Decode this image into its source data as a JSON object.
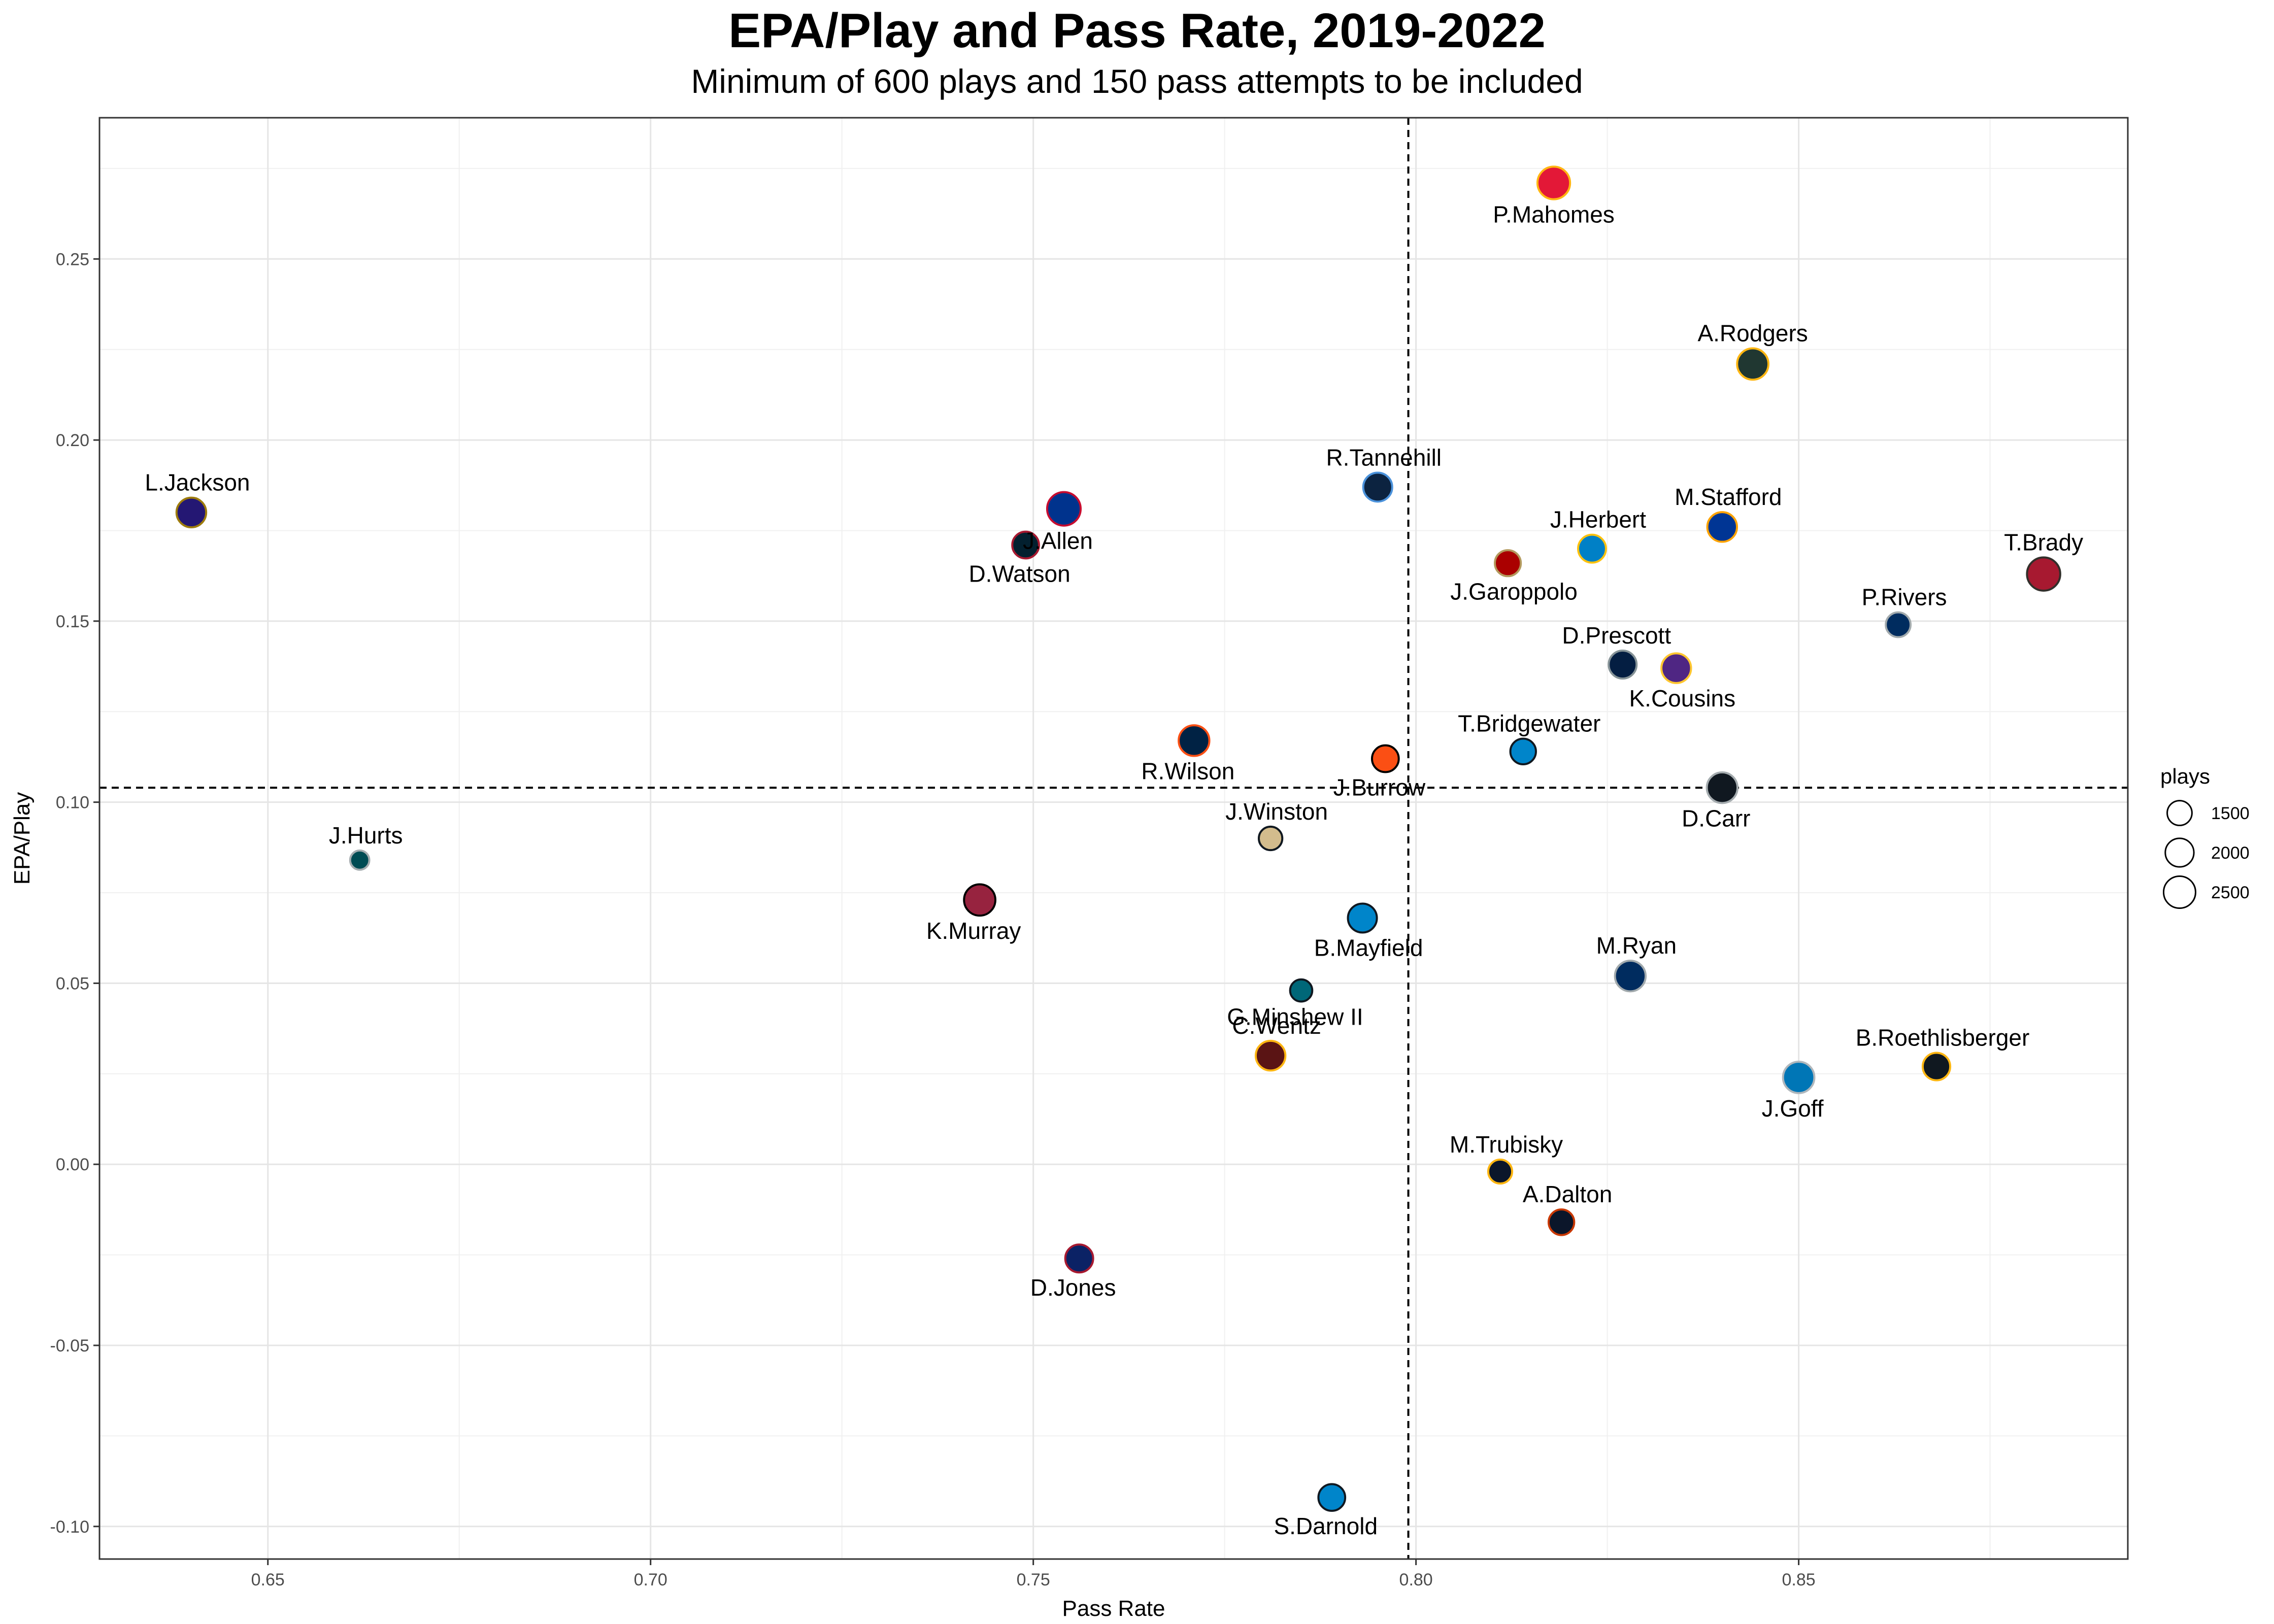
{
  "chart_data": {
    "type": "scatter",
    "title": "EPA/Play and Pass Rate, 2019-2022",
    "subtitle": "Minimum of 600 plays and 150 pass attempts to be included",
    "xlabel": "Pass Rate",
    "ylabel": "EPA/Play",
    "xlim": [
      0.628,
      0.893
    ],
    "ylim": [
      -0.109,
      0.289
    ],
    "x_ticks": [
      "0.65",
      "0.70",
      "0.75",
      "0.80",
      "0.85"
    ],
    "y_ticks": [
      "-0.10",
      "-0.05",
      "0.00",
      "0.05",
      "0.10",
      "0.15",
      "0.20",
      "0.25"
    ],
    "grid": true,
    "reference_lines": {
      "x": 0.799,
      "y": 0.104
    },
    "legend": {
      "title": "plays",
      "entries": [
        "1500",
        "2000",
        "2500"
      ],
      "position": "right"
    },
    "points": [
      {
        "label": "P.Mahomes",
        "x": 0.818,
        "y": 0.271,
        "plays": 2600,
        "fill": "#e31837",
        "stroke": "#ffb612"
      },
      {
        "label": "A.Rodgers",
        "x": 0.844,
        "y": 0.221,
        "plays": 2400,
        "fill": "#203731",
        "stroke": "#ffb612"
      },
      {
        "label": "L.Jackson",
        "x": 0.64,
        "y": 0.18,
        "plays": 2150,
        "fill": "#241773",
        "stroke": "#9e7c0c"
      },
      {
        "label": "J.Allen",
        "x": 0.754,
        "y": 0.181,
        "plays": 2750,
        "fill": "#00338d",
        "stroke": "#c60c30"
      },
      {
        "label": "D.Watson",
        "x": 0.749,
        "y": 0.171,
        "plays": 1750,
        "fill": "#03202f",
        "stroke": "#a71930"
      },
      {
        "label": "R.Tannehill",
        "x": 0.795,
        "y": 0.187,
        "plays": 2050,
        "fill": "#0c2340",
        "stroke": "#4b92db"
      },
      {
        "label": "J.Garoppolo",
        "x": 0.812,
        "y": 0.166,
        "plays": 1650,
        "fill": "#aa0000",
        "stroke": "#b3995d"
      },
      {
        "label": "J.Herbert",
        "x": 0.823,
        "y": 0.17,
        "plays": 1900,
        "fill": "#0080c6",
        "stroke": "#ffc20e"
      },
      {
        "label": "M.Stafford",
        "x": 0.84,
        "y": 0.176,
        "plays": 2150,
        "fill": "#003594",
        "stroke": "#ffa300"
      },
      {
        "label": "T.Brady",
        "x": 0.882,
        "y": 0.163,
        "plays": 2700,
        "fill": "#a71930",
        "stroke": "#322f2b"
      },
      {
        "label": "P.Rivers",
        "x": 0.863,
        "y": 0.149,
        "plays": 1500,
        "fill": "#002c5f",
        "stroke": "#a2aaad"
      },
      {
        "label": "D.Prescott",
        "x": 0.827,
        "y": 0.138,
        "plays": 1900,
        "fill": "#041e42",
        "stroke": "#869397"
      },
      {
        "label": "K.Cousins",
        "x": 0.834,
        "y": 0.137,
        "plays": 2150,
        "fill": "#4f2683",
        "stroke": "#ffc62f"
      },
      {
        "label": "R.Wilson",
        "x": 0.771,
        "y": 0.117,
        "plays": 2300,
        "fill": "#002244",
        "stroke": "#fb4f14"
      },
      {
        "label": "T.Bridgewater",
        "x": 0.814,
        "y": 0.114,
        "plays": 1600,
        "fill": "#0085ca",
        "stroke": "#101820"
      },
      {
        "label": "J.Burrow",
        "x": 0.796,
        "y": 0.112,
        "plays": 1750,
        "fill": "#fb4f14",
        "stroke": "#000000"
      },
      {
        "label": "D.Carr",
        "x": 0.84,
        "y": 0.104,
        "plays": 2300,
        "fill": "#101820",
        "stroke": "#a5acaf"
      },
      {
        "label": "J.Winston",
        "x": 0.781,
        "y": 0.09,
        "plays": 1350,
        "fill": "#d3bc8d",
        "stroke": "#101820"
      },
      {
        "label": "J.Hurts",
        "x": 0.662,
        "y": 0.084,
        "plays": 900,
        "fill": "#004c54",
        "stroke": "#a5acaf"
      },
      {
        "label": "K.Murray",
        "x": 0.743,
        "y": 0.073,
        "plays": 2400,
        "fill": "#97233f",
        "stroke": "#000000"
      },
      {
        "label": "B.Mayfield",
        "x": 0.793,
        "y": 0.068,
        "plays": 2050,
        "fill": "#0085ca",
        "stroke": "#101820"
      },
      {
        "label": "M.Ryan",
        "x": 0.828,
        "y": 0.052,
        "plays": 2300,
        "fill": "#002c5f",
        "stroke": "#a2aaad"
      },
      {
        "label": "G.Minshew II",
        "x": 0.785,
        "y": 0.048,
        "plays": 1200,
        "fill": "#006778",
        "stroke": "#101820"
      },
      {
        "label": "C.Wentz",
        "x": 0.781,
        "y": 0.03,
        "plays": 2150,
        "fill": "#5a1414",
        "stroke": "#ffb612"
      },
      {
        "label": "J.Goff",
        "x": 0.85,
        "y": 0.024,
        "plays": 2400,
        "fill": "#0076b6",
        "stroke": "#b0b7bc"
      },
      {
        "label": "B.Roethlisberger",
        "x": 0.868,
        "y": 0.027,
        "plays": 1850,
        "fill": "#101820",
        "stroke": "#ffb612"
      },
      {
        "label": "M.Trubisky",
        "x": 0.811,
        "y": -0.002,
        "plays": 1400,
        "fill": "#0b162a",
        "stroke": "#ffb612"
      },
      {
        "label": "A.Dalton",
        "x": 0.819,
        "y": -0.016,
        "plays": 1600,
        "fill": "#0b162a",
        "stroke": "#c83803"
      },
      {
        "label": "D.Jones",
        "x": 0.756,
        "y": -0.026,
        "plays": 1900,
        "fill": "#0b2265",
        "stroke": "#a71930"
      },
      {
        "label": "S.Darnold",
        "x": 0.789,
        "y": -0.092,
        "plays": 1750,
        "fill": "#0085ca",
        "stroke": "#101820"
      }
    ]
  }
}
